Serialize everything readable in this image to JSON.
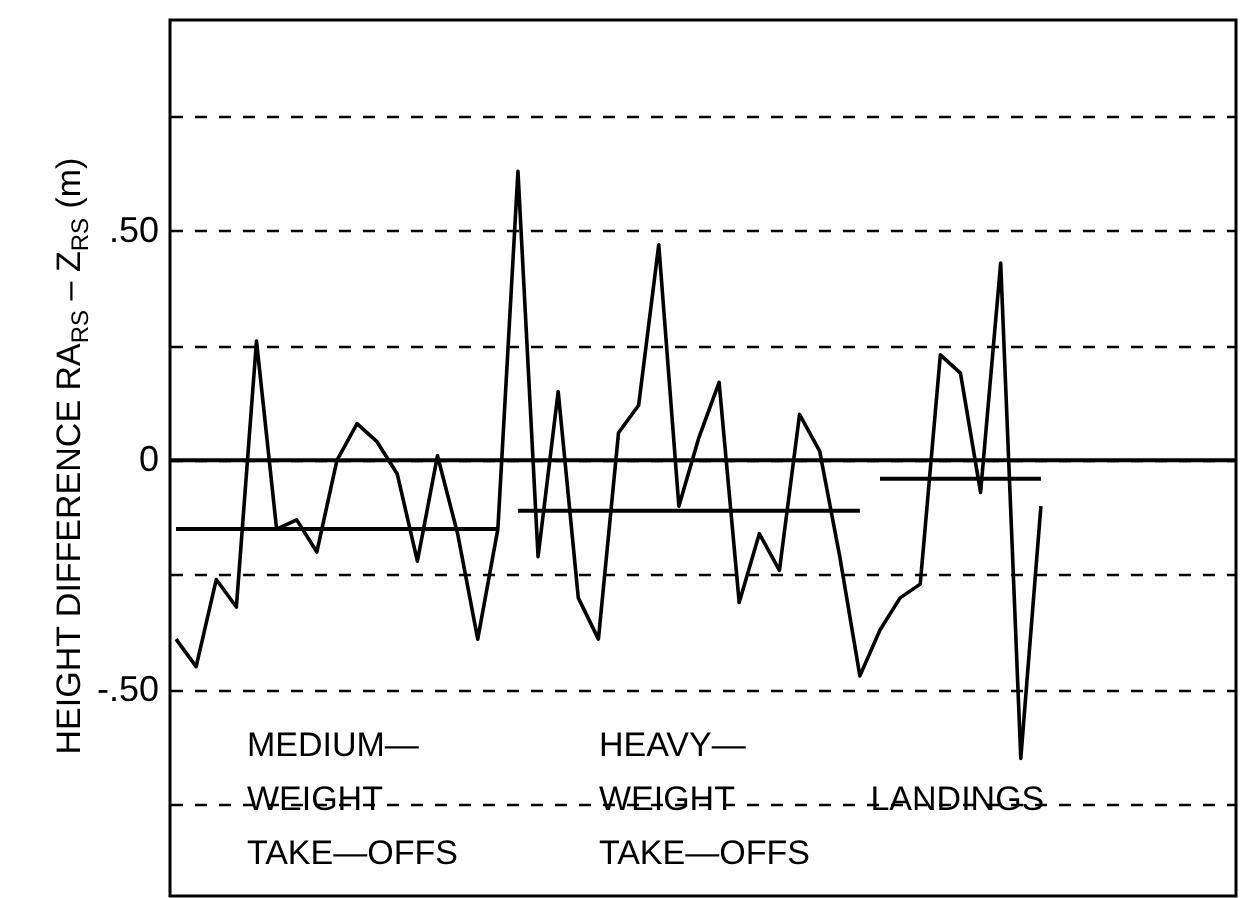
{
  "chart_data": {
    "type": "line",
    "ylabel": "HEIGHT DIFFERENCE RA$_{RS}$ – Z$_{RS}$ (m)",
    "categories": [
      null,
      null,
      null,
      null,
      null,
      null,
      null,
      null,
      null,
      null,
      null,
      null,
      null,
      null,
      null,
      null,
      null,
      null,
      null,
      null,
      null,
      null,
      null,
      null,
      null,
      null,
      null,
      null,
      null,
      null,
      null,
      null,
      null,
      null,
      null,
      null,
      null,
      null,
      null,
      null,
      null,
      null,
      null,
      null
    ],
    "series": [
      {
        "color": "#000000",
        "values": [
          -0.39,
          -0.45,
          -0.26,
          -0.32,
          0.26,
          -0.15,
          -0.13,
          -0.2,
          0.0,
          0.08,
          0.04,
          -0.03,
          -0.22,
          0.01,
          -0.16,
          -0.39,
          -0.15,
          0.63,
          -0.21,
          0.15,
          -0.3,
          -0.39,
          0.06,
          0.12,
          0.47,
          -0.1,
          0.05,
          0.17,
          -0.31,
          -0.16,
          -0.24,
          0.1,
          0.02,
          -0.21,
          -0.47,
          -0.37,
          -0.3,
          -0.27,
          0.23,
          0.19,
          -0.07,
          0.43,
          -0.65,
          -0.1
        ]
      },
      {
        "color": "#000000",
        "values": [
          -0.15,
          -0.15,
          -0.15,
          -0.15,
          -0.15,
          -0.15,
          -0.15,
          -0.15,
          -0.15,
          -0.15,
          -0.15,
          -0.15,
          -0.15,
          -0.15,
          -0.15,
          -0.15,
          -0.15,
          null,
          null,
          null,
          null,
          null,
          null,
          null,
          null,
          null,
          null,
          null,
          null,
          null,
          null,
          null,
          null,
          null,
          null,
          null,
          null,
          null,
          null,
          null,
          null,
          null,
          null,
          null
        ]
      },
      {
        "color": "#000000",
        "values": [
          null,
          null,
          null,
          null,
          null,
          null,
          null,
          null,
          null,
          null,
          null,
          null,
          null,
          null,
          null,
          null,
          null,
          -0.11,
          -0.11,
          -0.11,
          -0.11,
          -0.11,
          -0.11,
          -0.11,
          -0.11,
          -0.11,
          -0.11,
          -0.11,
          -0.11,
          -0.11,
          -0.11,
          -0.11,
          -0.11,
          -0.11,
          -0.11,
          null,
          null,
          null,
          null,
          null,
          null,
          null,
          null,
          null
        ]
      },
      {
        "color": "#000000",
        "values": [
          null,
          null,
          null,
          null,
          null,
          null,
          null,
          null,
          null,
          null,
          null,
          null,
          null,
          null,
          null,
          null,
          null,
          null,
          null,
          null,
          null,
          null,
          null,
          null,
          null,
          null,
          null,
          null,
          null,
          null,
          null,
          null,
          null,
          null,
          null,
          -0.04,
          -0.04,
          -0.04,
          -0.04,
          -0.04,
          -0.04,
          -0.04,
          -0.04,
          -0.04
        ]
      }
    ],
    "ylim": [
      -0.95,
      0.96
    ],
    "yticks": [
      {
        "value": -0.75,
        "label": null
      },
      {
        "value": -0.5,
        "label": "-.50"
      },
      {
        "value": -0.25,
        "label": null
      },
      0,
      {
        "value": 0.25,
        "label": null
      },
      {
        "value": 0.5,
        "label": ".50"
      },
      {
        "value": 0.75,
        "label": null
      }
    ],
    "grid": "y",
    "tick_labels": "y",
    "ref_lines": [
      {
        "axis": "y",
        "value": 0,
        "color": "#000000"
      }
    ],
    "annotations": [
      "MEDIUM—\nWEIGHT\nTAKE—OFFS",
      "HEAVY—\nWEIGHT\nTAKE—OFFS",
      "LANDINGS"
    ]
  }
}
